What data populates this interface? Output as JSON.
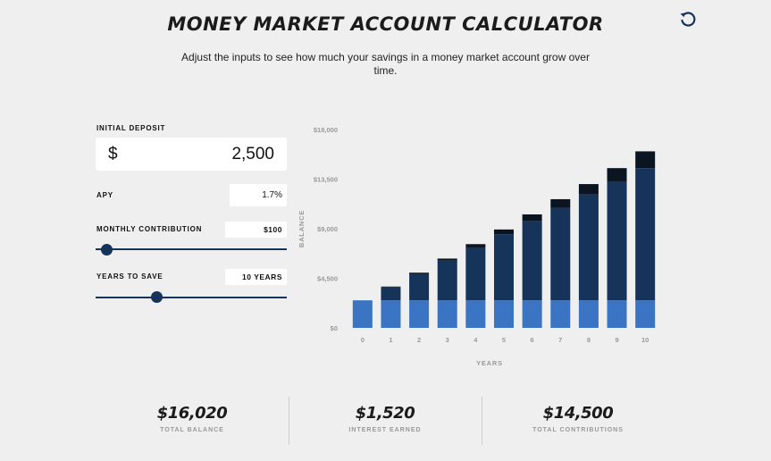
{
  "header": {
    "title": "MONEY MARKET ACCOUNT CALCULATOR",
    "subtitle": "Adjust the inputs to see how much your savings in a money market account grow over time."
  },
  "inputs": {
    "initial_deposit": {
      "label": "INITIAL DEPOSIT",
      "currency": "$",
      "value": "2,500"
    },
    "apy": {
      "label": "APY",
      "value": "1.7%"
    },
    "monthly_contribution": {
      "label": "MONTHLY CONTRIBUTION",
      "value": "$100",
      "slider_fraction": 0.06
    },
    "years_to_save": {
      "label": "YEARS TO SAVE",
      "value": "10 YEARS",
      "slider_fraction": 0.32
    }
  },
  "colors": {
    "deposit": "#3b74c2",
    "contribution": "#16335a",
    "interest": "#0b1522",
    "axis_text": "#9a9a9a"
  },
  "chart_data": {
    "type": "bar",
    "stacked": true,
    "xlabel": "YEARS",
    "ylabel": "BALANCE",
    "ylim": [
      0,
      18000
    ],
    "y_ticks": [
      "$0",
      "$4,500",
      "$9,000",
      "$13,500",
      "$18,000"
    ],
    "y_tick_values": [
      0,
      4500,
      9000,
      13500,
      18000
    ],
    "categories": [
      "0",
      "1",
      "2",
      "3",
      "4",
      "5",
      "6",
      "7",
      "8",
      "9",
      "10"
    ],
    "series": [
      {
        "key": "deposit",
        "values": [
          2500,
          2500,
          2500,
          2500,
          2500,
          2500,
          2500,
          2500,
          2500,
          2500,
          2500
        ]
      },
      {
        "key": "contribution",
        "values": [
          0,
          1200,
          2400,
          3600,
          4800,
          6000,
          7200,
          8400,
          9600,
          10800,
          12000
        ]
      },
      {
        "key": "interest",
        "values": [
          0,
          50,
          110,
          190,
          300,
          430,
          600,
          780,
          950,
          1200,
          1520
        ]
      }
    ]
  },
  "summary": [
    {
      "value": "$16,020",
      "label": "TOTAL BALANCE"
    },
    {
      "value": "$1,520",
      "label": "INTEREST EARNED"
    },
    {
      "value": "$14,500",
      "label": "TOTAL CONTRIBUTIONS"
    }
  ]
}
